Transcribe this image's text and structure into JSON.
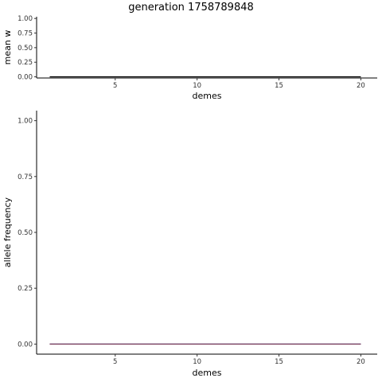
{
  "title": "generation 1758789848",
  "colors": {
    "top_series": "#000000",
    "bottom_series": "#7b3f5c",
    "bottom_series_under": "#3a4ca0"
  },
  "chart_data": [
    {
      "type": "line",
      "title": "generation 1758789848",
      "xlabel": "demes",
      "ylabel": "mean w",
      "xlim": [
        0.2,
        21
      ],
      "ylim": [
        -0.02,
        1.03
      ],
      "xticks": [
        5,
        10,
        15,
        20
      ],
      "xtick_labels": [
        "5",
        "10",
        "15",
        "20"
      ],
      "yticks": [
        0,
        0.25,
        0.5,
        0.75,
        1
      ],
      "ytick_labels": [
        "0.00",
        "0.25",
        "0.50",
        "0.75",
        "1.00"
      ],
      "grid": false,
      "series": [
        {
          "x": [
            1,
            2,
            3,
            4,
            5,
            6,
            7,
            8,
            9,
            10,
            11,
            12,
            13,
            14,
            15,
            16,
            17,
            18,
            19,
            20
          ],
          "values": [
            0,
            0,
            0,
            0,
            0,
            0,
            0,
            0,
            0,
            0,
            0,
            0,
            0,
            0,
            0,
            0,
            0,
            0,
            0,
            0
          ]
        }
      ]
    },
    {
      "type": "line",
      "title": "",
      "xlabel": "demes",
      "ylabel": "allele frequency",
      "xlim": [
        0.2,
        21
      ],
      "ylim": [
        -0.045,
        1.045
      ],
      "xticks": [
        5,
        10,
        15,
        20
      ],
      "xtick_labels": [
        "5",
        "10",
        "15",
        "20"
      ],
      "yticks": [
        0,
        0.25,
        0.5,
        0.75,
        1
      ],
      "ytick_labels": [
        "0.00",
        "0.25",
        "0.50",
        "0.75",
        "1.00"
      ],
      "grid": false,
      "series": [
        {
          "x": [
            1,
            2,
            3,
            4,
            5,
            6,
            7,
            8,
            9,
            10,
            11,
            12,
            13,
            14,
            15,
            16,
            17,
            18,
            19,
            20
          ],
          "values": [
            0,
            0,
            0,
            0,
            0,
            0,
            0,
            0,
            0,
            0,
            0,
            0,
            0,
            0,
            0,
            0,
            0,
            0,
            0,
            0
          ]
        },
        {
          "x": [
            1,
            2,
            3,
            4,
            5,
            6,
            7,
            8,
            9,
            10,
            11,
            12,
            13,
            14,
            15,
            16,
            17,
            18,
            19,
            20
          ],
          "values": [
            0,
            0,
            0,
            0,
            0,
            0,
            0,
            0,
            0,
            0,
            0,
            0,
            0,
            0,
            0,
            0,
            0,
            0,
            0,
            0
          ]
        }
      ]
    }
  ]
}
